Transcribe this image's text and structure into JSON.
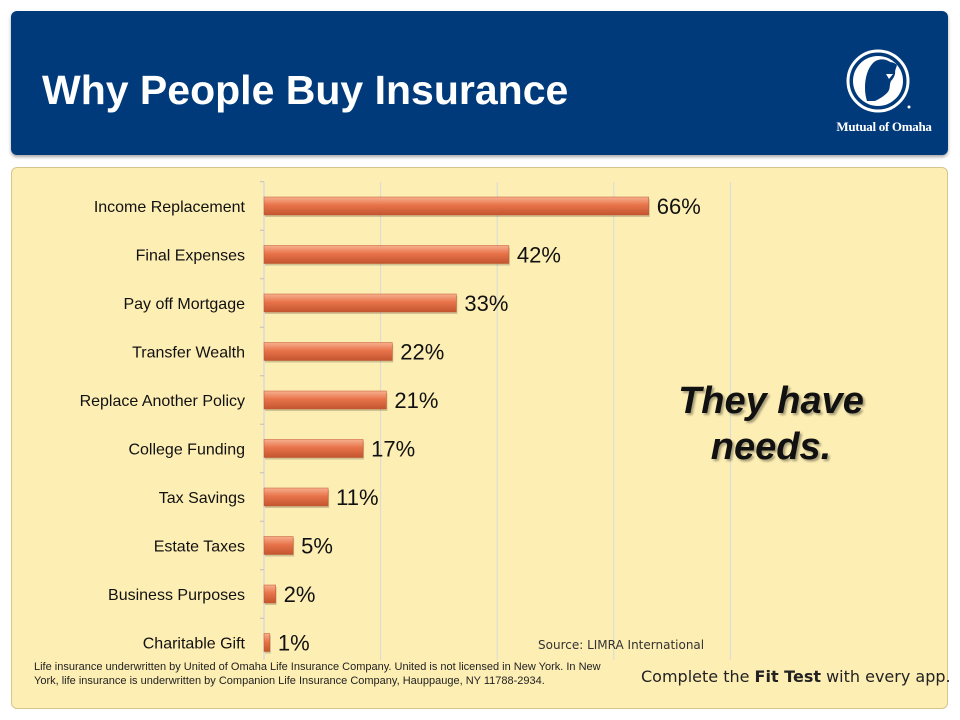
{
  "header": {
    "title": "Why People Buy Insurance",
    "logo_text": "Mutual of Omaha",
    "logo_icon": "indian-head-icon"
  },
  "chart_data": {
    "type": "bar",
    "orientation": "horizontal",
    "title": "",
    "xlabel": "",
    "ylabel": "",
    "categories": [
      "Income Replacement",
      "Final Expenses",
      "Pay off Mortgage",
      "Transfer Wealth",
      "Replace Another Policy",
      "College Funding",
      "Tax Savings",
      "Estate Taxes",
      "Business Purposes",
      "Charitable Gift"
    ],
    "values": [
      66,
      42,
      33,
      22,
      21,
      17,
      11,
      5,
      2,
      1
    ],
    "data_labels": [
      "66%",
      "42%",
      "33%",
      "22%",
      "21%",
      "17%",
      "11%",
      "5%",
      "2%",
      "1%"
    ],
    "xlim": [
      0,
      80
    ],
    "grid": true,
    "bar_color": "#e8734a"
  },
  "callout": {
    "text": "They have needs."
  },
  "source": "Source: LIMRA International",
  "disclaimer": "Life insurance underwritten by United of Omaha Life Insurance Company. United is not licensed in New York. In New York, life insurance is underwritten by Companion Life Insurance Company, Hauppauge, NY 11788-2934.",
  "footer": {
    "fit_test_prefix": "Complete the ",
    "fit_test_bold": "Fit Test",
    "fit_test_suffix": " with every app."
  },
  "colors": {
    "header_bg": "#003a7a",
    "panel_bg": "#fdeeb4",
    "bar": "#e8734a",
    "bar_highlight": "#f7b08f",
    "bar_shadow": "#c2552f"
  }
}
